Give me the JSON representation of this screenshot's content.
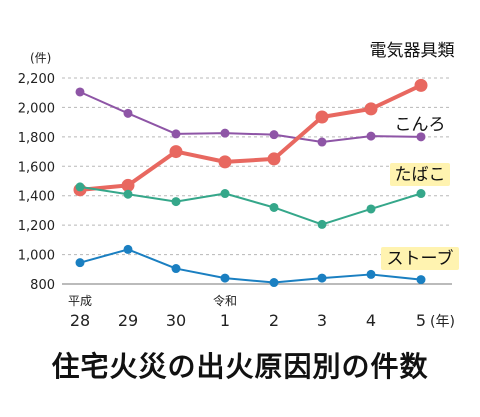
{
  "caption": "住宅火災の出火原因別の件数",
  "chart_data": {
    "type": "line",
    "y_unit": "(件)",
    "x_unit": "(年)",
    "era_labels": [
      {
        "index": 0,
        "text": "平成"
      },
      {
        "index": 3,
        "text": "令和"
      }
    ],
    "categories": [
      "28",
      "29",
      "30",
      "1",
      "2",
      "3",
      "4",
      "5"
    ],
    "ylim": [
      800,
      2200
    ],
    "yticks": [
      800,
      1000,
      1200,
      1400,
      1600,
      1800,
      2000,
      2200
    ],
    "ytick_labels": [
      "800",
      "1,000",
      "1,200",
      "1,400",
      "1,600",
      "1,800",
      "2,000",
      "2,200"
    ],
    "grid": "horizontal-dashed",
    "series": [
      {
        "name": "電気器具類",
        "color": "#8e55a6",
        "emphasis": false,
        "values": [
          2105,
          1960,
          1820,
          1825,
          1815,
          1765,
          1805,
          1800
        ]
      },
      {
        "name": "こんろ",
        "color": "#e86860",
        "emphasis": true,
        "values": [
          1440,
          1470,
          1700,
          1630,
          1650,
          1935,
          1990,
          2150
        ]
      },
      {
        "name": "たばこ",
        "color": "#35a78a",
        "emphasis": false,
        "values": [
          1460,
          1410,
          1360,
          1415,
          1320,
          1205,
          1310,
          1415
        ]
      },
      {
        "name": "ストーブ",
        "color": "#1a7fc1",
        "emphasis": false,
        "values": [
          945,
          1035,
          905,
          840,
          810,
          840,
          865,
          830
        ]
      }
    ],
    "highlight_color": "#fff3b0"
  }
}
